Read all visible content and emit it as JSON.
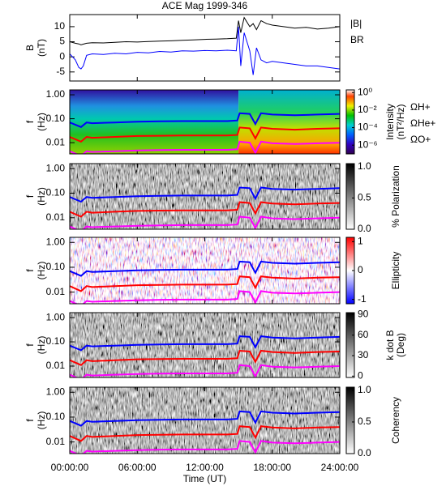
{
  "chart_data": [
    {
      "type": "line",
      "title": "ACE Mag 1999-346",
      "ylabel": [
        "B",
        "(nT)"
      ],
      "xlim": [
        0,
        24
      ],
      "ylim": [
        -8,
        14
      ],
      "yticks": [
        -5,
        0,
        5,
        10
      ],
      "x": [
        0,
        0.5,
        0.8,
        1,
        1.2,
        1.5,
        2,
        3,
        4,
        5,
        6,
        7,
        8,
        9,
        10,
        11,
        12,
        13,
        14,
        14.8,
        15,
        15.2,
        15.5,
        16,
        16.3,
        16.6,
        17,
        17.5,
        18,
        19,
        20,
        21,
        22,
        23,
        24
      ],
      "series": [
        {
          "name": "|B|",
          "color": "#000000",
          "values": [
            5,
            4.5,
            4.3,
            4,
            4.2,
            4.5,
            4.7,
            4.6,
            4.8,
            5,
            4.9,
            5.1,
            5.2,
            5.3,
            5.5,
            5.6,
            5.8,
            5.9,
            6,
            6.2,
            12,
            8,
            13,
            10,
            11,
            9,
            12,
            11,
            10.5,
            10,
            9.5,
            9.8,
            9.2,
            9.5,
            10
          ]
        },
        {
          "name": "BR",
          "color": "#0000ff",
          "values": [
            1,
            -1,
            -3.5,
            -4,
            -3,
            0.5,
            1,
            0.8,
            1.2,
            1,
            1.5,
            1.3,
            1.8,
            1.6,
            2,
            1.9,
            2.1,
            2,
            2.2,
            2,
            10,
            -3,
            8,
            2,
            -6,
            3,
            -1,
            -2,
            -1.5,
            -2,
            -2.5,
            -3,
            -3,
            -3.5,
            -4
          ]
        }
      ]
    },
    {
      "type": "spectrogram",
      "ylabel": [
        "f",
        "(Hz)"
      ],
      "ylog": true,
      "xlim": [
        0,
        24
      ],
      "ylim": [
        0.0034,
        1.6
      ],
      "yticks": [
        {
          "value": 1,
          "label": "1.00"
        },
        {
          "value": 0.1,
          "label": "0.10"
        },
        {
          "value": 0.01,
          "label": "0.01"
        }
      ],
      "colormap": "rainbow",
      "zlog": true,
      "zlim": [
        1e-07,
        2
      ],
      "zticks": [
        {
          "value": 1,
          "label": "10⁰"
        },
        {
          "value": 0.01,
          "label": "10⁻²"
        },
        {
          "value": 0.0001,
          "label": "10⁻⁴"
        },
        {
          "value": 1e-06,
          "label": "10⁻⁶"
        }
      ],
      "zlabel": [
        "Intensity",
        "(nT²/Hz)"
      ],
      "x": [
        0,
        1,
        1.5,
        2,
        4,
        6,
        8,
        10,
        12,
        14,
        14.9,
        15.1,
        16,
        16.5,
        17,
        18,
        20,
        22,
        24
      ],
      "series": [
        {
          "name": "ΩH+",
          "color": "#0000ff",
          "values": [
            0.07,
            0.045,
            0.07,
            0.065,
            0.07,
            0.075,
            0.078,
            0.08,
            0.08,
            0.08,
            0.085,
            0.17,
            0.16,
            0.06,
            0.17,
            0.15,
            0.14,
            0.15,
            0.16
          ]
        },
        {
          "name": "ΩHe+",
          "color": "#ff0000",
          "values": [
            0.0175,
            0.011,
            0.0175,
            0.016,
            0.0175,
            0.019,
            0.0195,
            0.02,
            0.02,
            0.02,
            0.021,
            0.043,
            0.04,
            0.015,
            0.043,
            0.038,
            0.035,
            0.038,
            0.04
          ]
        },
        {
          "name": "ΩO+",
          "color": "#ff00ff",
          "values": [
            0.0044,
            0.0028,
            0.0044,
            0.0041,
            0.0044,
            0.0047,
            0.0049,
            0.005,
            0.005,
            0.005,
            0.0053,
            0.011,
            0.01,
            0.0038,
            0.011,
            0.0094,
            0.0088,
            0.0094,
            0.01
          ]
        }
      ]
    },
    {
      "type": "spectrogram",
      "ylabel": [
        "f",
        "(Hz)"
      ],
      "ylog": true,
      "xlim": [
        0,
        24
      ],
      "ylim": [
        0.0034,
        1.6
      ],
      "yticks": [
        {
          "value": 1,
          "label": "1.00"
        },
        {
          "value": 0.1,
          "label": "0.10"
        },
        {
          "value": 0.01,
          "label": "0.01"
        }
      ],
      "colormap": "gray",
      "zlim": [
        0,
        1.05
      ],
      "zticks": [
        {
          "value": 1,
          "label": "1.0"
        },
        {
          "value": 0.5,
          "label": "0.5"
        },
        {
          "value": 0,
          "label": "0.0"
        }
      ],
      "zlabel": [
        "% Polarization"
      ],
      "x": [
        0,
        1,
        1.5,
        2,
        4,
        6,
        8,
        10,
        12,
        14,
        14.9,
        15.1,
        16,
        16.5,
        17,
        18,
        20,
        22,
        24
      ],
      "series": [
        {
          "color": "#0000ff",
          "values": [
            0.07,
            0.045,
            0.07,
            0.065,
            0.07,
            0.075,
            0.078,
            0.08,
            0.08,
            0.08,
            0.085,
            0.17,
            0.16,
            0.06,
            0.17,
            0.15,
            0.14,
            0.15,
            0.16
          ]
        },
        {
          "color": "#ff0000",
          "values": [
            0.0175,
            0.011,
            0.0175,
            0.016,
            0.0175,
            0.019,
            0.0195,
            0.02,
            0.02,
            0.02,
            0.021,
            0.043,
            0.04,
            0.015,
            0.043,
            0.038,
            0.035,
            0.038,
            0.04
          ]
        },
        {
          "color": "#ff00ff",
          "values": [
            0.0044,
            0.0028,
            0.0044,
            0.0041,
            0.0044,
            0.0047,
            0.0049,
            0.005,
            0.005,
            0.005,
            0.0053,
            0.011,
            0.01,
            0.0038,
            0.011,
            0.0094,
            0.0088,
            0.0094,
            0.01
          ]
        }
      ]
    },
    {
      "type": "spectrogram",
      "ylabel": [
        "f",
        "(Hz)"
      ],
      "ylog": true,
      "xlim": [
        0,
        24
      ],
      "ylim": [
        0.0034,
        1.6
      ],
      "yticks": [
        {
          "value": 1,
          "label": "1.00"
        },
        {
          "value": 0.1,
          "label": "0.10"
        },
        {
          "value": 0.01,
          "label": "0.01"
        }
      ],
      "colormap": "bwr",
      "zlim": [
        -1.15,
        1.15
      ],
      "zticks": [
        1,
        0,
        -1
      ],
      "zlabel": [
        "Ellipticity"
      ],
      "x": [
        0,
        1,
        1.5,
        2,
        4,
        6,
        8,
        10,
        12,
        14,
        14.9,
        15.1,
        16,
        16.5,
        17,
        18,
        20,
        22,
        24
      ],
      "series": [
        {
          "color": "#0000ff",
          "values": [
            0.07,
            0.045,
            0.07,
            0.065,
            0.07,
            0.075,
            0.078,
            0.08,
            0.08,
            0.08,
            0.085,
            0.17,
            0.16,
            0.06,
            0.17,
            0.15,
            0.14,
            0.15,
            0.16
          ]
        },
        {
          "color": "#ff0000",
          "values": [
            0.0175,
            0.011,
            0.0175,
            0.016,
            0.0175,
            0.019,
            0.0195,
            0.02,
            0.02,
            0.02,
            0.021,
            0.043,
            0.04,
            0.015,
            0.043,
            0.038,
            0.035,
            0.038,
            0.04
          ]
        },
        {
          "color": "#ff00ff",
          "values": [
            0.0044,
            0.0028,
            0.0044,
            0.0041,
            0.0044,
            0.0047,
            0.0049,
            0.005,
            0.005,
            0.005,
            0.0053,
            0.011,
            0.01,
            0.0038,
            0.011,
            0.0094,
            0.0088,
            0.0094,
            0.01
          ]
        }
      ]
    },
    {
      "type": "spectrogram",
      "ylabel": [
        "f",
        "(Hz)"
      ],
      "ylog": true,
      "xlim": [
        0,
        24
      ],
      "ylim": [
        0.0034,
        1.6
      ],
      "yticks": [
        {
          "value": 1,
          "label": "1.00"
        },
        {
          "value": 0.1,
          "label": "0.10"
        },
        {
          "value": 0.01,
          "label": "0.01"
        }
      ],
      "colormap": "gray",
      "zlim": [
        -2,
        93
      ],
      "zticks": [
        90,
        60,
        30,
        0
      ],
      "zlabel": [
        "k dot B",
        "(Deg)"
      ],
      "x": [
        0,
        1,
        1.5,
        2,
        4,
        6,
        8,
        10,
        12,
        14,
        14.9,
        15.1,
        16,
        16.5,
        17,
        18,
        20,
        22,
        24
      ],
      "series": [
        {
          "color": "#0000ff",
          "values": [
            0.07,
            0.045,
            0.07,
            0.065,
            0.07,
            0.075,
            0.078,
            0.08,
            0.08,
            0.08,
            0.085,
            0.17,
            0.16,
            0.06,
            0.17,
            0.15,
            0.14,
            0.15,
            0.16
          ]
        },
        {
          "color": "#ff0000",
          "values": [
            0.0175,
            0.011,
            0.0175,
            0.016,
            0.0175,
            0.019,
            0.0195,
            0.02,
            0.02,
            0.02,
            0.021,
            0.043,
            0.04,
            0.015,
            0.043,
            0.038,
            0.035,
            0.038,
            0.04
          ]
        },
        {
          "color": "#ff00ff",
          "values": [
            0.0044,
            0.0028,
            0.0044,
            0.0041,
            0.0044,
            0.0047,
            0.0049,
            0.005,
            0.005,
            0.005,
            0.0053,
            0.011,
            0.01,
            0.0038,
            0.011,
            0.0094,
            0.0088,
            0.0094,
            0.01
          ]
        }
      ]
    },
    {
      "type": "spectrogram",
      "ylabel": [
        "f",
        "(Hz)"
      ],
      "ylog": true,
      "xlim": [
        0,
        24
      ],
      "ylim": [
        0.0034,
        1.6
      ],
      "yticks": [
        {
          "value": 1,
          "label": "1.00"
        },
        {
          "value": 0.1,
          "label": "0.10"
        },
        {
          "value": 0.01,
          "label": "0.01"
        }
      ],
      "colormap": "gray",
      "zlim": [
        0,
        1.05
      ],
      "zticks": [
        {
          "value": 1,
          "label": "1.0"
        },
        {
          "value": 0.5,
          "label": "0.5"
        },
        {
          "value": 0,
          "label": "0.0"
        }
      ],
      "zlabel": [
        "Coherency"
      ],
      "xlabel": "Time (UT)",
      "xticks": [
        {
          "value": 0,
          "label": "00:00:00"
        },
        {
          "value": 6,
          "label": "06:00:00"
        },
        {
          "value": 12,
          "label": "12:00:00"
        },
        {
          "value": 18,
          "label": "18:00:00"
        },
        {
          "value": 24,
          "label": "24:00:00"
        }
      ],
      "x": [
        0,
        1,
        1.5,
        2,
        4,
        6,
        8,
        10,
        12,
        14,
        14.9,
        15.1,
        16,
        16.5,
        17,
        18,
        20,
        22,
        24
      ],
      "series": [
        {
          "color": "#0000ff",
          "values": [
            0.07,
            0.045,
            0.07,
            0.065,
            0.07,
            0.075,
            0.078,
            0.08,
            0.08,
            0.08,
            0.085,
            0.17,
            0.16,
            0.06,
            0.17,
            0.15,
            0.14,
            0.15,
            0.16
          ]
        },
        {
          "color": "#ff0000",
          "values": [
            0.0175,
            0.011,
            0.0175,
            0.016,
            0.0175,
            0.019,
            0.0195,
            0.02,
            0.02,
            0.02,
            0.021,
            0.043,
            0.04,
            0.015,
            0.043,
            0.038,
            0.035,
            0.038,
            0.04
          ]
        },
        {
          "color": "#ff00ff",
          "values": [
            0.0044,
            0.0028,
            0.0044,
            0.0041,
            0.0044,
            0.0047,
            0.0049,
            0.005,
            0.005,
            0.005,
            0.0053,
            0.011,
            0.01,
            0.0038,
            0.011,
            0.0094,
            0.0088,
            0.0094,
            0.01
          ]
        }
      ]
    }
  ]
}
